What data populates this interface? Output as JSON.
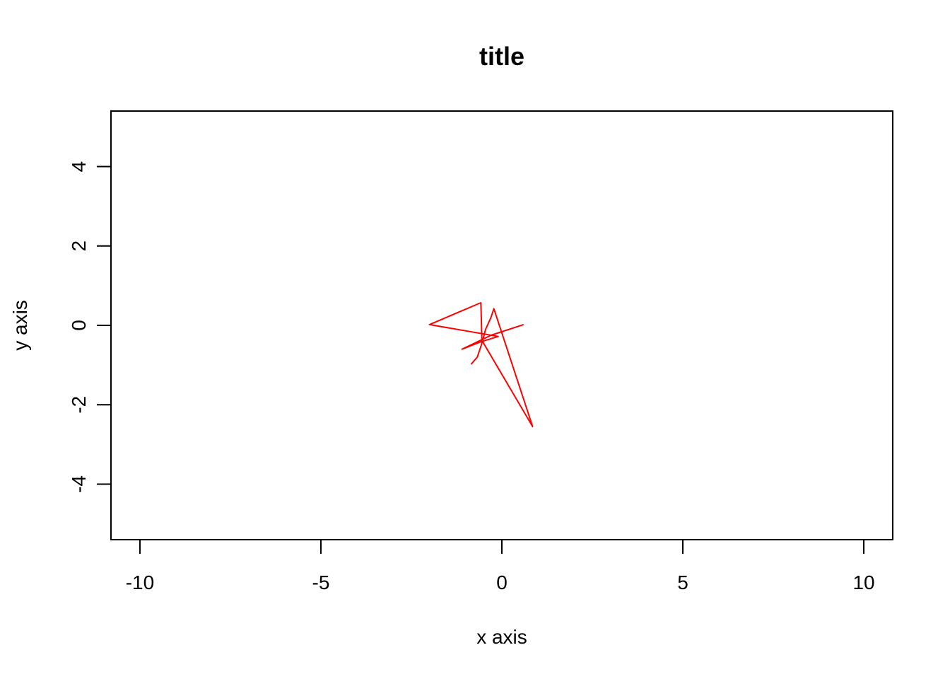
{
  "chart_data": {
    "type": "line",
    "title": "title",
    "xlabel": "x axis",
    "ylabel": "y axis",
    "xlim": [
      -10.8,
      10.8
    ],
    "ylim": [
      -5.4,
      5.4
    ],
    "x_ticks": [
      -10,
      -5,
      0,
      5,
      10
    ],
    "x_tick_labels": [
      "-10",
      "-5",
      "0",
      "5",
      "10"
    ],
    "y_ticks": [
      -4,
      -2,
      0,
      2,
      4
    ],
    "y_tick_labels": [
      "-4",
      "-2",
      "0",
      "2",
      "4"
    ],
    "grid": false,
    "legend": "none",
    "series": [
      {
        "color": "#ff0000",
        "x": [
          -0.85,
          -0.68,
          -0.55,
          -0.45,
          -0.3,
          -0.22,
          0.85,
          -0.55,
          -0.58,
          -2.0,
          -0.1,
          -0.6,
          -1.1,
          -0.3,
          0.6
        ],
        "y": [
          -0.98,
          -0.8,
          -0.45,
          -0.1,
          0.2,
          0.42,
          -2.55,
          -0.38,
          0.57,
          0.02,
          -0.28,
          -0.42,
          -0.6,
          -0.25,
          0.02
        ]
      }
    ]
  }
}
